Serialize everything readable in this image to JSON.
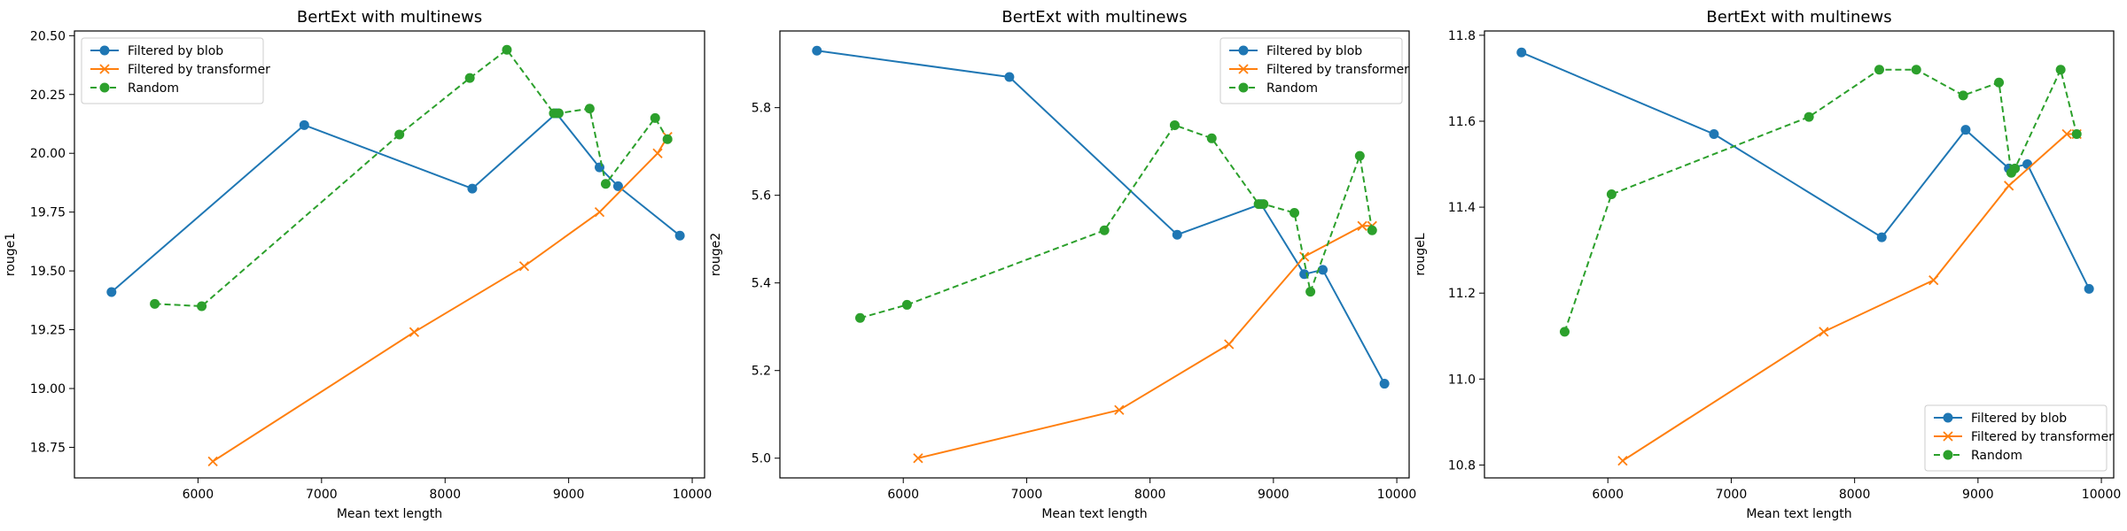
{
  "chart_data": [
    {
      "type": "line",
      "title": "BertExt with multinews",
      "xlabel": "Mean text length",
      "ylabel": "rouge1",
      "xlim": [
        5000,
        10100
      ],
      "ylim": [
        18.62,
        20.52
      ],
      "xticks": [
        6000,
        7000,
        8000,
        9000,
        10000
      ],
      "yticks": [
        18.75,
        19.0,
        19.25,
        19.5,
        19.75,
        20.0,
        20.25,
        20.5
      ],
      "ytick_labels": [
        "18.75",
        "19.00",
        "19.25",
        "19.50",
        "19.75",
        "20.00",
        "20.25",
        "20.50"
      ],
      "legend_position": "top-left",
      "series": [
        {
          "name": "Filtered by blob",
          "color": "#1f77b4",
          "marker": "circle",
          "dash": "solid",
          "x": [
            5300,
            6860,
            8220,
            8900,
            9250,
            9400,
            9900
          ],
          "y": [
            19.41,
            20.12,
            19.85,
            20.17,
            19.94,
            19.86,
            19.65
          ]
        },
        {
          "name": "Filtered by transformer",
          "color": "#ff7f0e",
          "marker": "x",
          "dash": "solid",
          "x": [
            6120,
            7750,
            8640,
            9250,
            9720,
            9800
          ],
          "y": [
            18.69,
            19.24,
            19.52,
            19.75,
            20.0,
            20.07
          ]
        },
        {
          "name": "Random",
          "color": "#2ca02c",
          "marker": "circle",
          "dash": "dashed",
          "x": [
            5650,
            6030,
            7630,
            8200,
            8500,
            8880,
            8920,
            9170,
            9300,
            9700,
            9800
          ],
          "y": [
            19.36,
            19.35,
            20.08,
            20.32,
            20.44,
            20.17,
            20.17,
            20.19,
            19.87,
            20.15,
            20.06
          ]
        }
      ]
    },
    {
      "type": "line",
      "title": "BertExt with multinews",
      "xlabel": "Mean text length",
      "ylabel": "rouge2",
      "xlim": [
        5000,
        10100
      ],
      "ylim": [
        4.955,
        5.975
      ],
      "xticks": [
        6000,
        7000,
        8000,
        9000,
        10000
      ],
      "yticks": [
        5.0,
        5.2,
        5.4,
        5.6,
        5.8
      ],
      "ytick_labels": [
        "5.0",
        "5.2",
        "5.4",
        "5.6",
        "5.8"
      ],
      "legend_position": "top-right",
      "series": [
        {
          "name": "Filtered by blob",
          "color": "#1f77b4",
          "marker": "circle",
          "dash": "solid",
          "x": [
            5300,
            6860,
            8220,
            8900,
            9250,
            9400,
            9900
          ],
          "y": [
            5.93,
            5.87,
            5.51,
            5.58,
            5.42,
            5.43,
            5.17
          ]
        },
        {
          "name": "Filtered by transformer",
          "color": "#ff7f0e",
          "marker": "x",
          "dash": "solid",
          "x": [
            6120,
            7750,
            8640,
            9250,
            9720,
            9800
          ],
          "y": [
            5.0,
            5.11,
            5.26,
            5.46,
            5.53,
            5.53
          ]
        },
        {
          "name": "Random",
          "color": "#2ca02c",
          "marker": "circle",
          "dash": "dashed",
          "x": [
            5650,
            6030,
            7630,
            8200,
            8500,
            8880,
            8920,
            9170,
            9300,
            9700,
            9800
          ],
          "y": [
            5.32,
            5.35,
            5.52,
            5.76,
            5.73,
            5.58,
            5.58,
            5.56,
            5.38,
            5.69,
            5.52
          ]
        }
      ]
    },
    {
      "type": "line",
      "title": "BertExt with multinews",
      "xlabel": "Mean text length",
      "ylabel": "rougeL",
      "xlim": [
        5000,
        10100
      ],
      "ylim": [
        10.77,
        11.81
      ],
      "xticks": [
        6000,
        7000,
        8000,
        9000,
        10000
      ],
      "yticks": [
        10.8,
        11.0,
        11.2,
        11.4,
        11.6,
        11.8
      ],
      "ytick_labels": [
        "10.8",
        "11.0",
        "11.2",
        "11.4",
        "11.6",
        "11.8"
      ],
      "legend_position": "bottom-right",
      "series": [
        {
          "name": "Filtered by blob",
          "color": "#1f77b4",
          "marker": "circle",
          "dash": "solid",
          "x": [
            5300,
            6860,
            8220,
            8900,
            9250,
            9400,
            9900
          ],
          "y": [
            11.76,
            11.57,
            11.33,
            11.58,
            11.49,
            11.5,
            11.21
          ]
        },
        {
          "name": "Filtered by transformer",
          "color": "#ff7f0e",
          "marker": "x",
          "dash": "solid",
          "x": [
            6120,
            7750,
            8640,
            9250,
            9720,
            9800
          ],
          "y": [
            10.81,
            11.11,
            11.23,
            11.45,
            11.57,
            11.57
          ]
        },
        {
          "name": "Random",
          "color": "#2ca02c",
          "marker": "circle",
          "dash": "dashed",
          "x": [
            5650,
            6030,
            7630,
            8200,
            8500,
            8880,
            9170,
            9270,
            9300,
            9670,
            9800
          ],
          "y": [
            11.11,
            11.43,
            11.61,
            11.72,
            11.72,
            11.66,
            11.69,
            11.48,
            11.49,
            11.72,
            11.57
          ]
        }
      ]
    }
  ]
}
